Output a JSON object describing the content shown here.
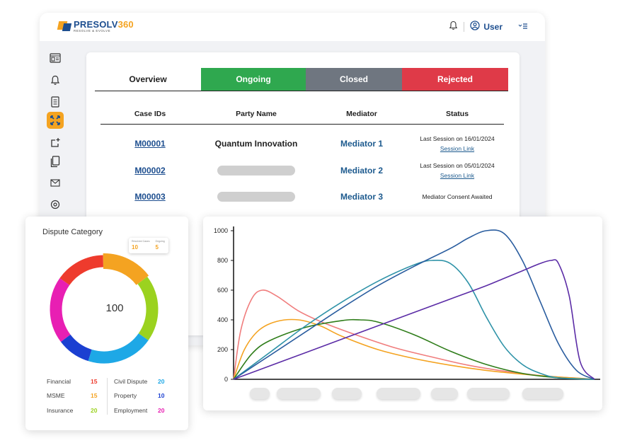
{
  "app": {
    "logo_main": "PRESOLV",
    "logo_num": "360",
    "logo_sub": "RESOLVE & EVOLVE",
    "user_label": "User"
  },
  "icons": {
    "bell": "bell-icon",
    "user": "user-circle-icon",
    "menu": "menu-icon",
    "sidebar": [
      "dashboard-icon",
      "notification-icon",
      "document-icon",
      "cases-icon",
      "share-icon",
      "files-icon",
      "mail-icon",
      "settings-icon"
    ]
  },
  "colors": {
    "brand_blue": "#1d4e8f",
    "brand_orange": "#f4a321",
    "ongoing": "#2fa84f",
    "closed": "#6f7680",
    "rejected": "#df3a48"
  },
  "tabs": [
    {
      "label": "Overview"
    },
    {
      "label": "Ongoing"
    },
    {
      "label": "Closed"
    },
    {
      "label": "Rejected"
    }
  ],
  "table": {
    "headers": [
      "Case IDs",
      "Party Name",
      "Mediator",
      "Status"
    ],
    "rows": [
      {
        "case_id": "M00001",
        "party": "Quantum Innovation",
        "mediator": "Mediator 1",
        "status": "Last Session on 16/01/2024",
        "link": "Session Link"
      },
      {
        "case_id": "M00002",
        "party": "",
        "mediator": "Mediator 2",
        "status": "Last Session on 05/01/2024",
        "link": "Session Link"
      },
      {
        "case_id": "M00003",
        "party": "",
        "mediator": "Mediator 3",
        "status": "Mediator Consent Awaited",
        "link": ""
      }
    ]
  },
  "dispute": {
    "title": "Dispute Category",
    "total": "100",
    "badge": {
      "label1": "Resolved Cases",
      "value1": "10",
      "label2": "Ongoing",
      "value2": "5"
    },
    "categories": [
      {
        "name": "Financial",
        "value": "15",
        "color": "#ee3b2d"
      },
      {
        "name": "MSME",
        "value": "15",
        "color": "#f4a321"
      },
      {
        "name": "Insurance",
        "value": "20",
        "color": "#9bd21f"
      },
      {
        "name": "Civil Dispute",
        "value": "20",
        "color": "#1ea8e6"
      },
      {
        "name": "Property",
        "value": "10",
        "color": "#1b3fd1"
      },
      {
        "name": "Employment",
        "value": "20",
        "color": "#e81fb3"
      }
    ]
  },
  "chart_data": {
    "type": "line",
    "ylim": [
      0,
      1000
    ],
    "xlim": [
      0,
      1
    ],
    "yticks": [
      "0",
      "200",
      "400",
      "600",
      "800",
      "1000"
    ],
    "grid": false,
    "series": [
      {
        "color": "#f07d7d",
        "x": [
          0,
          0.02,
          0.05,
          0.08,
          0.12,
          0.18,
          0.25,
          0.35,
          0.45,
          0.55,
          0.65,
          0.75,
          0.85,
          0.95,
          1.0
        ],
        "y": [
          0,
          330,
          540,
          600,
          560,
          460,
          380,
          290,
          210,
          150,
          95,
          55,
          25,
          8,
          0
        ]
      },
      {
        "color": "#f4a321",
        "x": [
          0,
          0.03,
          0.07,
          0.12,
          0.18,
          0.24,
          0.3,
          0.4,
          0.5,
          0.6,
          0.7,
          0.8,
          0.9,
          1.0
        ],
        "y": [
          0,
          200,
          330,
          390,
          400,
          360,
          290,
          200,
          140,
          95,
          60,
          35,
          15,
          0
        ]
      },
      {
        "color": "#2f7d1a",
        "x": [
          0,
          0.05,
          0.1,
          0.2,
          0.3,
          0.35,
          0.4,
          0.5,
          0.6,
          0.7,
          0.8,
          0.9,
          1.0
        ],
        "y": [
          0,
          170,
          260,
          350,
          395,
          400,
          385,
          300,
          190,
          100,
          40,
          10,
          0
        ]
      },
      {
        "color": "#2f93a8",
        "x": [
          0,
          0.1,
          0.2,
          0.3,
          0.4,
          0.5,
          0.55,
          0.6,
          0.65,
          0.7,
          0.75,
          0.8,
          0.85,
          0.9,
          1.0
        ],
        "y": [
          0,
          180,
          360,
          520,
          660,
          770,
          800,
          780,
          650,
          420,
          220,
          100,
          40,
          10,
          0
        ]
      },
      {
        "color": "#2a5d9f",
        "x": [
          0,
          0.1,
          0.2,
          0.3,
          0.4,
          0.5,
          0.6,
          0.65,
          0.7,
          0.75,
          0.8,
          0.85,
          0.9,
          0.95,
          1.0
        ],
        "y": [
          0,
          160,
          320,
          480,
          630,
          760,
          880,
          950,
          1000,
          980,
          800,
          520,
          240,
          60,
          0
        ]
      },
      {
        "color": "#5b2ca6",
        "x": [
          0,
          0.1,
          0.2,
          0.3,
          0.4,
          0.5,
          0.6,
          0.7,
          0.75,
          0.8,
          0.85,
          0.88,
          0.9,
          0.93,
          0.96,
          1.0
        ],
        "y": [
          0,
          90,
          180,
          270,
          360,
          450,
          540,
          630,
          680,
          730,
          780,
          800,
          780,
          560,
          120,
          0
        ]
      }
    ]
  }
}
